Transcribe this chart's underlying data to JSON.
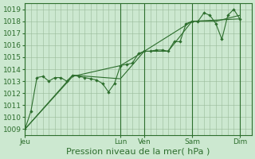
{
  "background_color": "#cce8d0",
  "plot_bg_color": "#cce8d0",
  "grid_color": "#99bb99",
  "line_color": "#2d6e2d",
  "ylim_min": 1008.5,
  "ylim_max": 1019.5,
  "yticks": [
    1009,
    1010,
    1011,
    1012,
    1013,
    1014,
    1015,
    1016,
    1017,
    1018,
    1019
  ],
  "xlabel": "Pression niveau de la mer( hPa )",
  "xlabel_fontsize": 8,
  "xtick_labels": [
    "Jeu",
    "Lun",
    "Ven",
    "Sam",
    "Dim"
  ],
  "xtick_positions": [
    0,
    96,
    120,
    168,
    216
  ],
  "xlim": [
    0,
    228
  ],
  "series1_x": [
    0,
    6,
    12,
    18,
    24,
    30,
    36,
    42,
    48,
    54,
    60,
    66,
    72,
    78,
    84,
    90,
    96,
    102,
    108,
    114,
    120,
    126,
    132,
    138,
    144,
    150,
    156,
    162,
    168,
    174,
    180,
    186,
    192,
    198,
    204,
    210,
    216
  ],
  "series1_y": [
    1009.0,
    1010.5,
    1013.3,
    1013.4,
    1013.0,
    1013.3,
    1013.3,
    1013.0,
    1013.5,
    1013.4,
    1013.3,
    1013.2,
    1013.1,
    1012.8,
    1012.1,
    1012.8,
    1014.3,
    1014.4,
    1014.5,
    1015.3,
    1015.5,
    1015.5,
    1015.6,
    1015.6,
    1015.5,
    1016.3,
    1016.3,
    1017.8,
    1018.0,
    1018.0,
    1018.7,
    1018.5,
    1017.8,
    1016.5,
    1018.5,
    1019.0,
    1018.2
  ],
  "series2_x": [
    0,
    48,
    96,
    120,
    168,
    216
  ],
  "series2_y": [
    1009.0,
    1013.4,
    1014.3,
    1015.5,
    1018.0,
    1018.2
  ],
  "series3_x": [
    0,
    48,
    96,
    120,
    144,
    168,
    192,
    216
  ],
  "series3_y": [
    1009.0,
    1013.5,
    1013.2,
    1015.5,
    1015.5,
    1018.0,
    1018.0,
    1018.5
  ],
  "minor_x_step": 6,
  "vline_positions": [
    0,
    96,
    120,
    168,
    216
  ],
  "tick_fontsize": 6.5,
  "ytick_fontsize": 6.5
}
